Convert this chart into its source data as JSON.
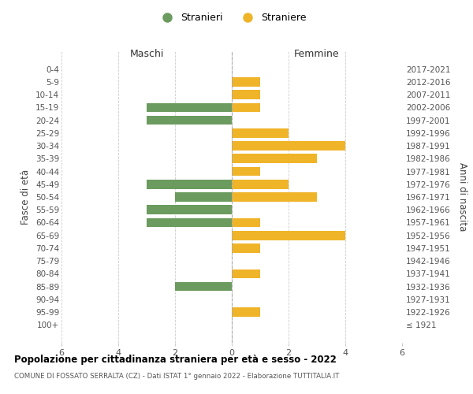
{
  "age_groups": [
    "0-4",
    "5-9",
    "10-14",
    "15-19",
    "20-24",
    "25-29",
    "30-34",
    "35-39",
    "40-44",
    "45-49",
    "50-54",
    "55-59",
    "60-64",
    "65-69",
    "70-74",
    "75-79",
    "80-84",
    "85-89",
    "90-94",
    "95-99",
    "100+"
  ],
  "birth_years": [
    "2017-2021",
    "2012-2016",
    "2007-2011",
    "2002-2006",
    "1997-2001",
    "1992-1996",
    "1987-1991",
    "1982-1986",
    "1977-1981",
    "1972-1976",
    "1967-1971",
    "1962-1966",
    "1957-1961",
    "1952-1956",
    "1947-1951",
    "1942-1946",
    "1937-1941",
    "1932-1936",
    "1927-1931",
    "1922-1926",
    "≤ 1921"
  ],
  "males": [
    0,
    0,
    0,
    3,
    3,
    0,
    0,
    0,
    0,
    3,
    2,
    3,
    3,
    0,
    0,
    0,
    0,
    2,
    0,
    0,
    0
  ],
  "females": [
    0,
    1,
    1,
    1,
    0,
    2,
    4,
    3,
    1,
    2,
    3,
    0,
    1,
    4,
    1,
    0,
    1,
    0,
    0,
    1,
    0
  ],
  "male_color": "#6b9b5e",
  "female_color": "#f0b429",
  "bar_height": 0.72,
  "xlim": 6,
  "title": "Popolazione per cittadinanza straniera per età e sesso - 2022",
  "subtitle": "COMUNE DI FOSSATO SERRALTA (CZ) - Dati ISTAT 1° gennaio 2022 - Elaborazione TUTTITALIA.IT",
  "ylabel_left": "Fasce di età",
  "ylabel_right": "Anni di nascita",
  "legend_male": "Stranieri",
  "legend_female": "Straniere",
  "maschi_label": "Maschi",
  "femmine_label": "Femmine",
  "background_color": "#ffffff",
  "grid_color": "#cccccc",
  "zero_line_color": "#aaaaaa",
  "tick_color": "#555555"
}
